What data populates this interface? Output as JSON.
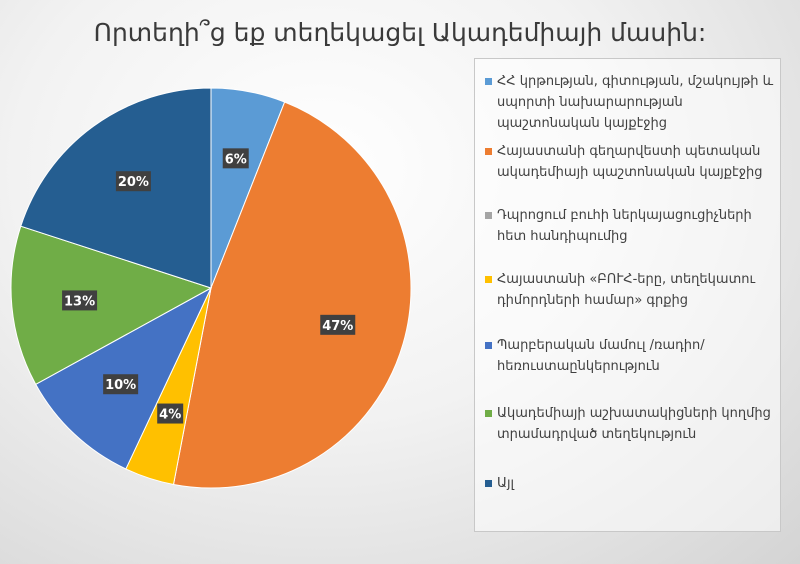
{
  "chart_data": {
    "type": "pie",
    "title": "Որտեղի՞ց եք տեղեկացել Ակադեմիայի մասին:",
    "legend_position": "right",
    "series": [
      {
        "name": "ՀՀ կրթության, գիտության, մշակույթի և սպորտի նախարարության պաշտոնական կայքէջից",
        "value": 6,
        "label": "6%",
        "color": "#5b9bd5"
      },
      {
        "name": "Հայաստանի գեղարվեստի պետական ակադեմիայի պաշտոնական կայքէջից",
        "value": 47,
        "label": "47%",
        "color": "#ed7d31"
      },
      {
        "name": "Դպրոցում բուհի ներկայացուցիչների հետ հանդիպումից",
        "value": 0,
        "label": "",
        "color": "#a5a5a5"
      },
      {
        "name": "Հայաստանի «ԲՈՒՀ-երը, տեղեկատու դիմորդների համար» գրքից",
        "value": 4,
        "label": "4%",
        "color": "#ffc000"
      },
      {
        "name": "Պարբերական մամուլ /ռադիո/ հեռուստաընկերություն",
        "value": 10,
        "label": "10%",
        "color": "#4472c4"
      },
      {
        "name": "Ակադեմիայի աշխատակիցների կողմից տրամադրված տեղեկություն",
        "value": 13,
        "label": "13%",
        "color": "#70ad47"
      },
      {
        "name": "Այլ",
        "value": 20,
        "label": "20%",
        "color": "#255e91"
      }
    ]
  }
}
